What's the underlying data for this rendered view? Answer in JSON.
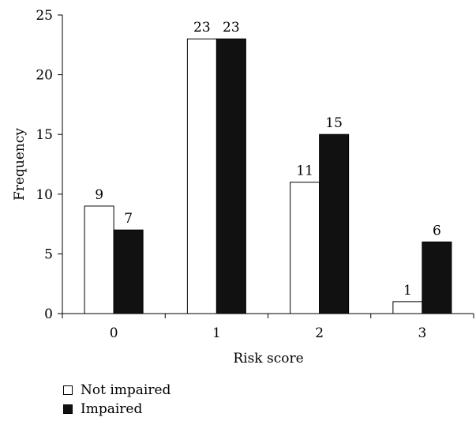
{
  "chart_data": {
    "type": "bar",
    "xlabel": "Risk score",
    "ylabel": "Frequency",
    "categories": [
      "0",
      "1",
      "2",
      "3"
    ],
    "ylim": [
      0,
      25
    ],
    "yticks": [
      "0",
      "5",
      "10",
      "15",
      "20",
      "25"
    ],
    "series": [
      {
        "name": "Not impaired",
        "values": [
          9,
          23,
          11,
          1
        ],
        "color": "#ffffff"
      },
      {
        "name": "Impaired",
        "values": [
          7,
          23,
          15,
          6
        ],
        "color": "#111111"
      }
    ],
    "data_labels": true,
    "grid": false,
    "legend_position": "bottom-left"
  }
}
